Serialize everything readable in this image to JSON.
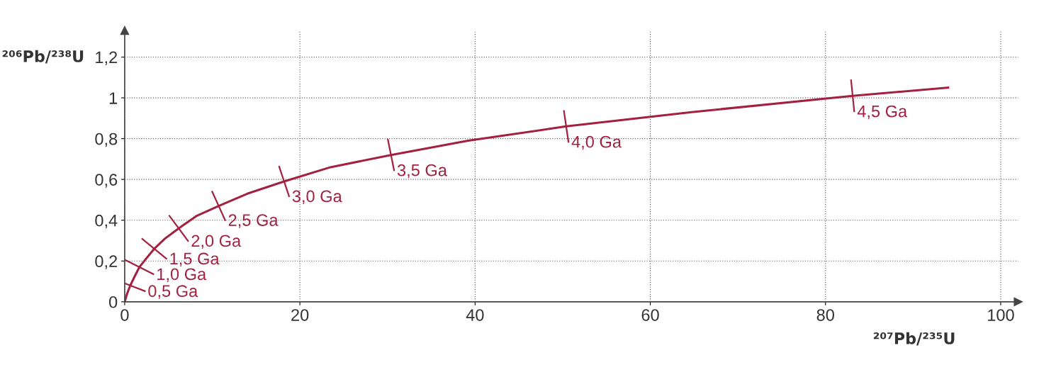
{
  "chart_data": {
    "type": "line",
    "xlabel": "²⁰⁷Pb/²³⁵U",
    "ylabel": "²⁰⁶Pb/²³⁸U",
    "x": [
      0,
      0.28,
      0.64,
      1.09,
      1.68,
      2.42,
      3.38,
      4.6,
      6.17,
      8.17,
      10.73,
      14.0,
      18.2,
      23.5,
      30.4,
      39.2,
      50.4,
      64.7,
      83.1,
      94
    ],
    "series": [
      {
        "color": "#a3213f",
        "values": [
          0,
          0.04,
          0.08,
          0.12,
          0.17,
          0.21,
          0.26,
          0.31,
          0.36,
          0.42,
          0.47,
          0.53,
          0.59,
          0.66,
          0.72,
          0.79,
          0.86,
          0.93,
          1.01,
          1.05
        ]
      }
    ],
    "xlim": [
      0,
      102
    ],
    "ylim": [
      0,
      1.33
    ],
    "xticks": [
      0,
      20,
      40,
      60,
      80,
      100
    ],
    "yticks": [
      0,
      {
        "value": 0.2,
        "label": "0,2"
      },
      {
        "value": 0.4,
        "label": "0,4"
      },
      {
        "value": 0.6,
        "label": "0,6"
      },
      {
        "value": 0.8,
        "label": "0,8"
      },
      1,
      {
        "value": 1.2,
        "label": "1,2"
      }
    ],
    "grid": true,
    "marker": "none",
    "line_style": "solid",
    "annotations": [
      {
        "text": "0,5 Ga",
        "x": 0.64,
        "y": 0.08
      },
      {
        "text": "1,0 Ga",
        "x": 1.68,
        "y": 0.17
      },
      {
        "text": "1,5 Ga",
        "x": 3.38,
        "y": 0.26
      },
      {
        "text": "2,0 Ga",
        "x": 6.17,
        "y": 0.36
      },
      {
        "text": "2,5 Ga",
        "x": 10.73,
        "y": 0.47
      },
      {
        "text": "3,0 Ga",
        "x": 18.2,
        "y": 0.59
      },
      {
        "text": "3,5 Ga",
        "x": 30.4,
        "y": 0.72
      },
      {
        "text": "4,0 Ga",
        "x": 50.4,
        "y": 0.86
      },
      {
        "text": "4,5 Ga",
        "x": 83.1,
        "y": 1.01
      }
    ]
  }
}
